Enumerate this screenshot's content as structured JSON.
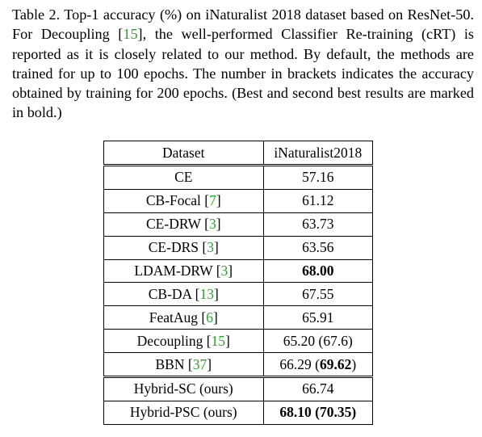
{
  "caption": {
    "text_before_cite": "Table 2. Top-1 accuracy (%) on iNaturalist 2018 dataset based on ResNet-50. For Decoupling [",
    "cite": "15",
    "text_after_cite": "], the well-performed Classifier Re-training (cRT) is reported as it is closely related to our method. By default, the methods are trained for up to 100 epochs. The number in brackets indicates the accuracy obtained by training for 200 epochs. (Best and second best results are marked in bold.)"
  },
  "table": {
    "headers": [
      "Dataset",
      "iNaturalist2018"
    ],
    "baselines": [
      {
        "method": "CE",
        "cite": "",
        "value": "57.16",
        "extra": "",
        "value_bold": false,
        "extra_bold": false
      },
      {
        "method": "CB-Focal",
        "cite": "7",
        "value": "61.12",
        "extra": "",
        "value_bold": false,
        "extra_bold": false
      },
      {
        "method": "CE-DRW",
        "cite": "3",
        "value": "63.73",
        "extra": "",
        "value_bold": false,
        "extra_bold": false
      },
      {
        "method": "CE-DRS",
        "cite": "3",
        "value": "63.56",
        "extra": "",
        "value_bold": false,
        "extra_bold": false
      },
      {
        "method": "LDAM-DRW",
        "cite": "3",
        "value": "68.00",
        "extra": "",
        "value_bold": true,
        "extra_bold": false
      },
      {
        "method": "CB-DA",
        "cite": "13",
        "value": "67.55",
        "extra": "",
        "value_bold": false,
        "extra_bold": false
      },
      {
        "method": "FeatAug",
        "cite": "6",
        "value": "65.91",
        "extra": "",
        "value_bold": false,
        "extra_bold": false
      },
      {
        "method": "Decoupling",
        "cite": "15",
        "value": "65.20",
        "extra": "(67.6)",
        "value_bold": false,
        "extra_bold": false
      },
      {
        "method": "BBN",
        "cite": "37",
        "value": "66.29",
        "extra": "69.62",
        "value_bold": false,
        "extra_bold": true
      }
    ],
    "ours": [
      {
        "method": "Hybrid-SC (ours)",
        "value": "66.74",
        "extra": "",
        "value_bold": false,
        "extra_bold": false
      },
      {
        "method": "Hybrid-PSC (ours)",
        "value": "68.10",
        "extra": "(70.35)",
        "value_bold": true,
        "extra_bold": true
      }
    ]
  },
  "colors": {
    "citation": "#2ca02c",
    "text": "#000000"
  }
}
